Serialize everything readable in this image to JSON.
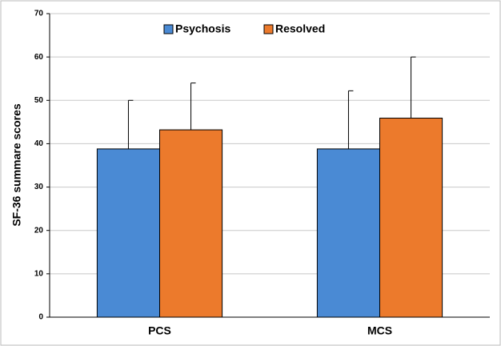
{
  "chart_data": {
    "type": "bar",
    "y_label": "SF-36 summare scores",
    "categories": [
      "PCS",
      "MCS"
    ],
    "series": [
      {
        "name": "Psychosis",
        "color": "#4a8ad4",
        "values": [
          38.8,
          38.8
        ],
        "errors": [
          11.2,
          13.4
        ]
      },
      {
        "name": "Resolved",
        "color": "#ec7a2c",
        "values": [
          43.2,
          45.9
        ],
        "errors": [
          10.8,
          14.1
        ]
      }
    ],
    "ylim": [
      0,
      70
    ],
    "yticks": [
      0,
      10,
      20,
      30,
      40,
      50,
      60,
      70
    ],
    "grid": true,
    "legend": "top"
  }
}
